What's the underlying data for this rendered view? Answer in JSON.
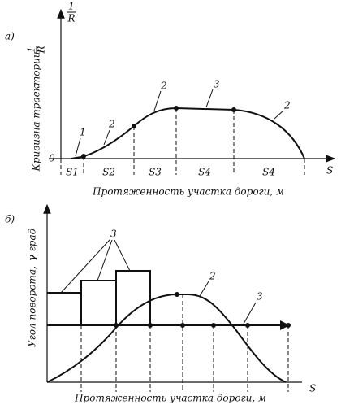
{
  "panels": {
    "a": {
      "label": "а)",
      "y_label": "Кривизна траектории,",
      "y_fraction": {
        "numerator": "1",
        "denominator": "R"
      },
      "axis_fraction": {
        "numerator": "1",
        "denominator": "R"
      },
      "origin": "0",
      "x_end": "S",
      "segments": [
        "S1",
        "S2",
        "S3",
        "S4",
        "S4"
      ],
      "curve_labels": [
        "1",
        "2",
        "2",
        "3",
        "2"
      ],
      "x_label": "Протяженность участка дороги, м"
    },
    "b": {
      "label": "б)",
      "y_label": "Угол поворота,",
      "y_symbol": "γ",
      "y_unit": "град",
      "x_end": "S",
      "curve_labels": [
        "3",
        "2",
        "3"
      ],
      "x_label": "Протяженность участка дороги, м"
    }
  }
}
